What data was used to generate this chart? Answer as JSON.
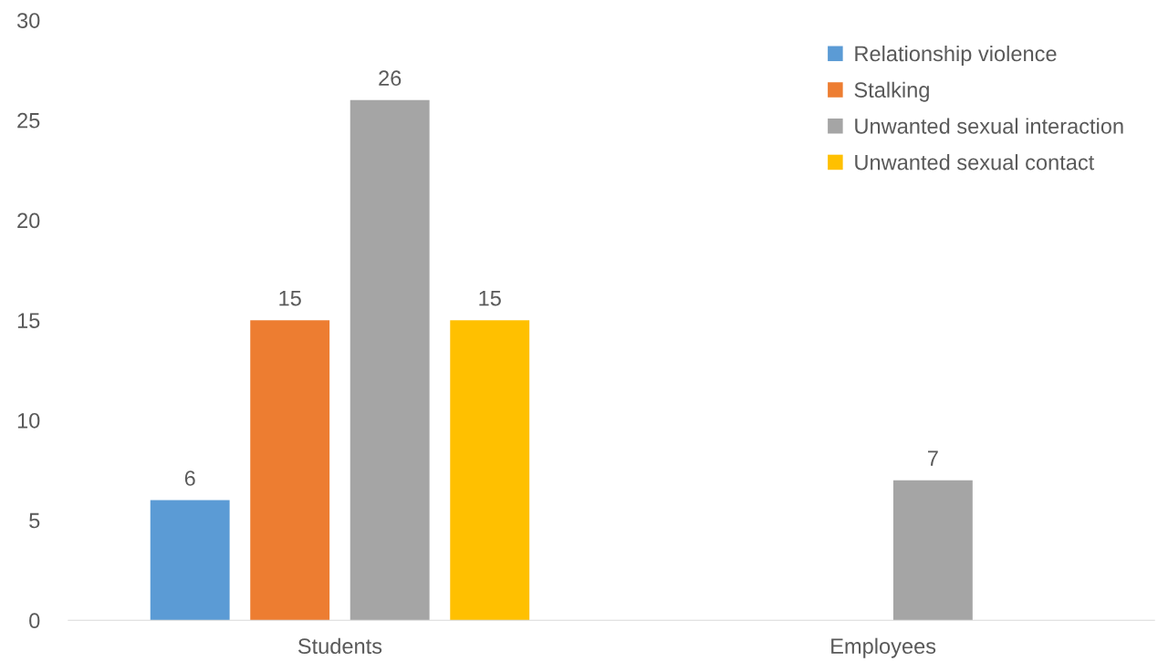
{
  "chart_data": {
    "type": "bar",
    "categories": [
      "Students",
      "Employees"
    ],
    "series": [
      {
        "name": "Relationship violence",
        "color": "#5b9bd5",
        "values": [
          6,
          null
        ]
      },
      {
        "name": "Stalking",
        "color": "#ed7d31",
        "values": [
          15,
          null
        ]
      },
      {
        "name": "Unwanted sexual interaction",
        "color": "#a5a5a5",
        "values": [
          26,
          7
        ]
      },
      {
        "name": "Unwanted sexual contact",
        "color": "#ffc000",
        "values": [
          15,
          null
        ]
      }
    ],
    "ylim": [
      0,
      30
    ],
    "yticks": [
      0,
      5,
      10,
      15,
      20,
      25,
      30
    ],
    "data_labels": true,
    "legend": "top right"
  }
}
